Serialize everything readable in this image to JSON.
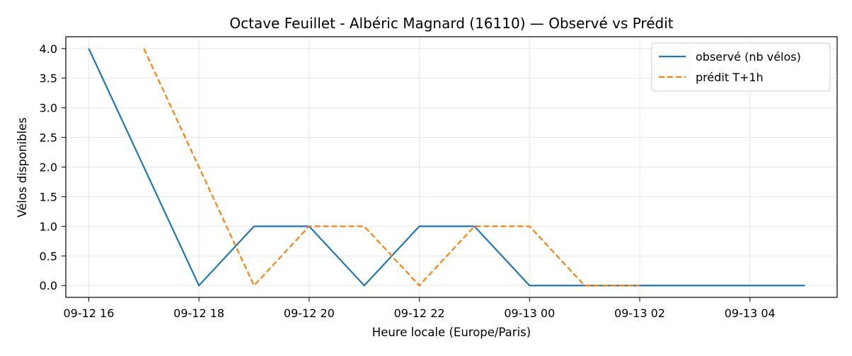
{
  "chart_data": {
    "type": "line",
    "title": "Octave Feuillet - Albéric Magnard (16110) — Observé vs Prédit",
    "xlabel": "Heure locale (Europe/Paris)",
    "ylabel": "Vélos disponibles",
    "x_ticks": [
      "09-12 16",
      "09-12 18",
      "09-12 20",
      "09-12 22",
      "09-13 00",
      "09-13 02",
      "09-13 04"
    ],
    "y_ticks": [
      "0.0",
      "0.5",
      "1.0",
      "1.5",
      "2.0",
      "2.5",
      "3.0",
      "3.5",
      "4.0"
    ],
    "xlim": [
      "2023-09-12 15:35",
      "2023-09-13 05:35"
    ],
    "ylim": [
      -0.2,
      4.2
    ],
    "grid": true,
    "legend_position": "upper right",
    "series": [
      {
        "name": "observé (nb vélos)",
        "color": "#1f77b4",
        "style": "solid",
        "x": [
          "2023-09-12 16:00",
          "2023-09-12 18:00",
          "2023-09-12 19:00",
          "2023-09-12 20:00",
          "2023-09-12 21:00",
          "2023-09-12 22:00",
          "2023-09-12 23:00",
          "2023-09-13 00:00",
          "2023-09-13 01:00",
          "2023-09-13 02:00",
          "2023-09-13 03:00",
          "2023-09-13 04:00",
          "2023-09-13 05:00"
        ],
        "y": [
          4,
          0,
          1,
          1,
          0,
          1,
          1,
          0,
          0,
          0,
          0,
          0,
          0
        ]
      },
      {
        "name": "prédit T+1h",
        "color": "#ff7f0e",
        "style": "dashed",
        "x": [
          "2023-09-12 17:00",
          "2023-09-12 18:00",
          "2023-09-12 19:00",
          "2023-09-12 20:00",
          "2023-09-12 21:00",
          "2023-09-12 22:00",
          "2023-09-12 23:00",
          "2023-09-13 00:00",
          "2023-09-13 01:00",
          "2023-09-13 02:00"
        ],
        "y": [
          4,
          2,
          0,
          1,
          1,
          0,
          1,
          1,
          0,
          0
        ]
      }
    ]
  }
}
